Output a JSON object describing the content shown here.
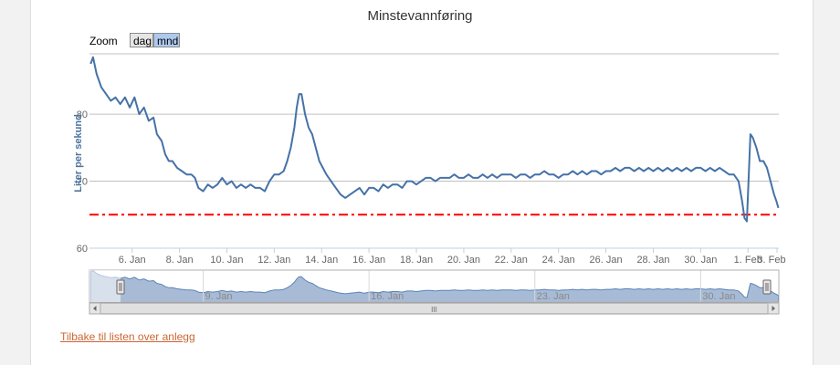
{
  "title": "Minstevannføring",
  "zoom": {
    "label": "Zoom",
    "buttons": [
      "dag",
      "mnd"
    ],
    "selected": "mnd"
  },
  "back_link": "Tilbake til listen over anlegg",
  "colors": {
    "line": "#4572a7",
    "threshold": "#ff0000",
    "navigator_fill": "#a8bbd6",
    "grid": "#c0c0c0",
    "link": "#cc6633"
  },
  "chart_data": {
    "type": "line",
    "title": "Minstevannføring",
    "ylabel": "Liter per sekund",
    "xlabel": "",
    "ylim": [
      60,
      89
    ],
    "yticks": [
      60,
      70,
      80
    ],
    "xlim": [
      4.2,
      33.3
    ],
    "xticks": [
      {
        "x": 6,
        "label": "6. Jan"
      },
      {
        "x": 8,
        "label": "8. Jan"
      },
      {
        "x": 10,
        "label": "10. Jan"
      },
      {
        "x": 12,
        "label": "12. Jan"
      },
      {
        "x": 14,
        "label": "14. Jan"
      },
      {
        "x": 16,
        "label": "16. Jan"
      },
      {
        "x": 18,
        "label": "18. Jan"
      },
      {
        "x": 20,
        "label": "20. Jan"
      },
      {
        "x": 22,
        "label": "22. Jan"
      },
      {
        "x": 24,
        "label": "24. Jan"
      },
      {
        "x": 26,
        "label": "26. Jan"
      },
      {
        "x": 28,
        "label": "28. Jan"
      },
      {
        "x": 30,
        "label": "30. Jan"
      },
      {
        "x": 32,
        "label": "1. Feb"
      },
      {
        "x": 34,
        "label": "3. Feb"
      }
    ],
    "grid": true,
    "threshold": {
      "value": 65,
      "style": "dash-dot"
    },
    "series": [
      {
        "x_unit": "day of January 2013",
        "points": [
          [
            4.25,
            87.5
          ],
          [
            4.35,
            88.5
          ],
          [
            4.5,
            86
          ],
          [
            4.7,
            84
          ],
          [
            4.9,
            83
          ],
          [
            5.1,
            82
          ],
          [
            5.3,
            82.5
          ],
          [
            5.5,
            81.5
          ],
          [
            5.7,
            82.5
          ],
          [
            5.9,
            81
          ],
          [
            6.1,
            82.5
          ],
          [
            6.3,
            80
          ],
          [
            6.5,
            81
          ],
          [
            6.7,
            79
          ],
          [
            6.9,
            79.5
          ],
          [
            7.05,
            77
          ],
          [
            7.25,
            76
          ],
          [
            7.4,
            74
          ],
          [
            7.55,
            73
          ],
          [
            7.7,
            73
          ],
          [
            7.9,
            72
          ],
          [
            8.1,
            71.5
          ],
          [
            8.3,
            71
          ],
          [
            8.5,
            71
          ],
          [
            8.65,
            70.5
          ],
          [
            8.8,
            69
          ],
          [
            9.0,
            68.5
          ],
          [
            9.2,
            69.5
          ],
          [
            9.4,
            69
          ],
          [
            9.6,
            69.5
          ],
          [
            9.8,
            70.5
          ],
          [
            10.0,
            69.5
          ],
          [
            10.2,
            70
          ],
          [
            10.4,
            69
          ],
          [
            10.6,
            69.5
          ],
          [
            10.8,
            69
          ],
          [
            11.0,
            69.5
          ],
          [
            11.2,
            69
          ],
          [
            11.4,
            69
          ],
          [
            11.6,
            68.5
          ],
          [
            11.8,
            70
          ],
          [
            12.0,
            71
          ],
          [
            12.2,
            71
          ],
          [
            12.4,
            71.5
          ],
          [
            12.55,
            73
          ],
          [
            12.7,
            75
          ],
          [
            12.85,
            78
          ],
          [
            12.95,
            81
          ],
          [
            13.05,
            83
          ],
          [
            13.15,
            83
          ],
          [
            13.3,
            80
          ],
          [
            13.45,
            78
          ],
          [
            13.6,
            77
          ],
          [
            13.75,
            75
          ],
          [
            13.9,
            73
          ],
          [
            14.05,
            72
          ],
          [
            14.2,
            71
          ],
          [
            14.4,
            70
          ],
          [
            14.6,
            69
          ],
          [
            14.8,
            68
          ],
          [
            15.0,
            67.5
          ],
          [
            15.2,
            68
          ],
          [
            15.4,
            68.5
          ],
          [
            15.6,
            69
          ],
          [
            15.8,
            68
          ],
          [
            16.0,
            69
          ],
          [
            16.2,
            69
          ],
          [
            16.4,
            68.5
          ],
          [
            16.6,
            69.5
          ],
          [
            16.8,
            69
          ],
          [
            17.0,
            69.5
          ],
          [
            17.2,
            69.5
          ],
          [
            17.4,
            69
          ],
          [
            17.6,
            70
          ],
          [
            17.8,
            70
          ],
          [
            18.0,
            69.5
          ],
          [
            18.2,
            70
          ],
          [
            18.4,
            70.5
          ],
          [
            18.6,
            70.5
          ],
          [
            18.8,
            70
          ],
          [
            19.0,
            70.5
          ],
          [
            19.2,
            70.5
          ],
          [
            19.4,
            70.5
          ],
          [
            19.6,
            71
          ],
          [
            19.8,
            70.5
          ],
          [
            20.0,
            70.5
          ],
          [
            20.2,
            71
          ],
          [
            20.4,
            70.5
          ],
          [
            20.6,
            70.5
          ],
          [
            20.8,
            71
          ],
          [
            21.0,
            70.5
          ],
          [
            21.2,
            71
          ],
          [
            21.4,
            70.5
          ],
          [
            21.6,
            71
          ],
          [
            21.8,
            71
          ],
          [
            22.0,
            71
          ],
          [
            22.2,
            70.5
          ],
          [
            22.4,
            71
          ],
          [
            22.6,
            71
          ],
          [
            22.8,
            70.5
          ],
          [
            23.0,
            71
          ],
          [
            23.2,
            71
          ],
          [
            23.4,
            71.5
          ],
          [
            23.6,
            71
          ],
          [
            23.8,
            71
          ],
          [
            24.0,
            70.5
          ],
          [
            24.2,
            71
          ],
          [
            24.4,
            71
          ],
          [
            24.6,
            71.5
          ],
          [
            24.8,
            71
          ],
          [
            25.0,
            71.5
          ],
          [
            25.2,
            71
          ],
          [
            25.4,
            71.5
          ],
          [
            25.6,
            71.5
          ],
          [
            25.8,
            71
          ],
          [
            26.0,
            71.5
          ],
          [
            26.2,
            71.5
          ],
          [
            26.4,
            72
          ],
          [
            26.6,
            71.5
          ],
          [
            26.8,
            72
          ],
          [
            27.0,
            72
          ],
          [
            27.2,
            71.5
          ],
          [
            27.4,
            72
          ],
          [
            27.6,
            71.5
          ],
          [
            27.8,
            72
          ],
          [
            28.0,
            71.5
          ],
          [
            28.2,
            72
          ],
          [
            28.4,
            71.5
          ],
          [
            28.6,
            72
          ],
          [
            28.8,
            71.5
          ],
          [
            29.0,
            72
          ],
          [
            29.2,
            71.5
          ],
          [
            29.4,
            72
          ],
          [
            29.6,
            71.5
          ],
          [
            29.8,
            72
          ],
          [
            30.0,
            72
          ],
          [
            30.2,
            71.5
          ],
          [
            30.4,
            72
          ],
          [
            30.6,
            71.5
          ],
          [
            30.8,
            72
          ],
          [
            31.0,
            71.5
          ],
          [
            31.2,
            71
          ],
          [
            31.4,
            71
          ],
          [
            31.6,
            70
          ],
          [
            31.75,
            67
          ],
          [
            31.85,
            64.5
          ],
          [
            31.95,
            64
          ],
          [
            32.02,
            70
          ],
          [
            32.1,
            77
          ],
          [
            32.2,
            76.5
          ],
          [
            32.35,
            75
          ],
          [
            32.5,
            73
          ],
          [
            32.65,
            73
          ],
          [
            32.8,
            72
          ],
          [
            32.95,
            70
          ],
          [
            33.1,
            68
          ],
          [
            33.2,
            67
          ],
          [
            33.28,
            66
          ]
        ]
      }
    ],
    "navigator": {
      "xticks": [
        {
          "x": 9,
          "label": "9. Jan"
        },
        {
          "x": 16,
          "label": "16. Jan"
        },
        {
          "x": 23,
          "label": "23. Jan"
        },
        {
          "x": 30,
          "label": "30. Jan"
        }
      ],
      "scrollbar_grip": "III"
    }
  }
}
